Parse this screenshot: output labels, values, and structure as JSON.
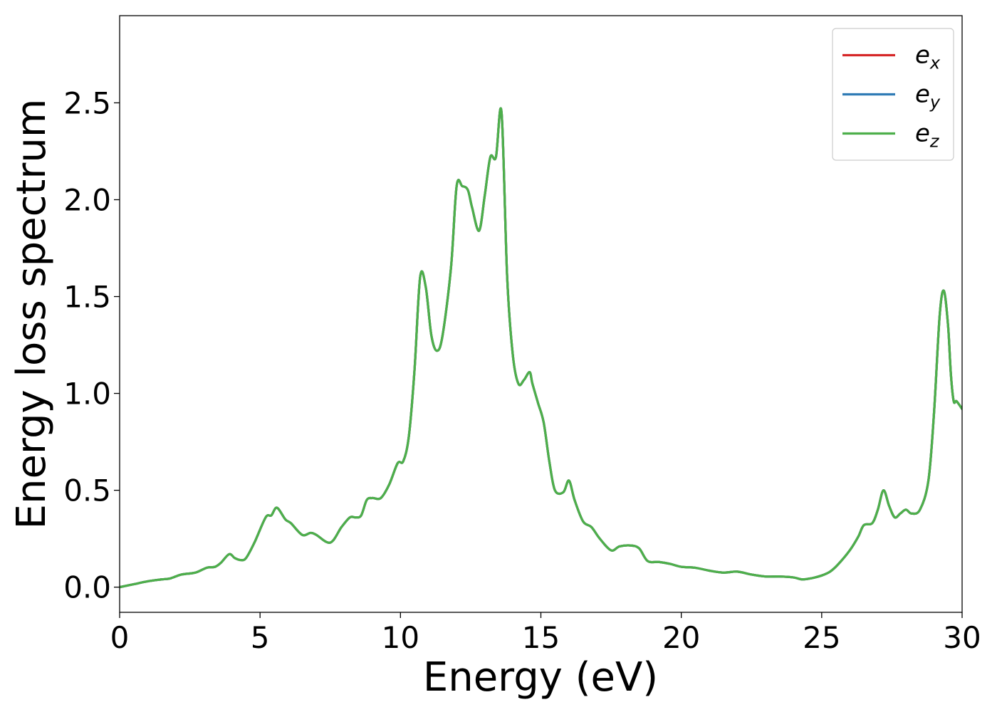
{
  "chart_data": {
    "type": "line",
    "title": "",
    "xlabel": "Energy (eV)",
    "ylabel": "Energy loss spectrum",
    "xlim": [
      0,
      30
    ],
    "ylim": [
      -0.13,
      2.95
    ],
    "x_ticks": [
      "0",
      "5",
      "10",
      "15",
      "20",
      "25",
      "30"
    ],
    "y_ticks": [
      "0.0",
      "0.5",
      "1.0",
      "1.5",
      "2.0",
      "2.5"
    ],
    "grid": false,
    "legend": {
      "position": "top-right",
      "entries": [
        {
          "base": "e",
          "sub": "x",
          "color": "#d62728"
        },
        {
          "base": "e",
          "sub": "y",
          "color": "#2f7bb5"
        },
        {
          "base": "e",
          "sub": "z",
          "color": "#4daf4a"
        }
      ]
    },
    "x": [
      0,
      0.5,
      1.0,
      1.5,
      1.8,
      2.2,
      2.7,
      3.1,
      3.4,
      3.6,
      3.9,
      4.1,
      4.3,
      4.5,
      4.8,
      5.2,
      5.4,
      5.6,
      5.9,
      6.1,
      6.5,
      6.8,
      7.0,
      7.5,
      7.9,
      8.2,
      8.4,
      8.6,
      8.8,
      9.0,
      9.3,
      9.6,
      9.9,
      10.1,
      10.3,
      10.5,
      10.7,
      10.9,
      11.1,
      11.3,
      11.5,
      11.8,
      12.0,
      12.2,
      12.4,
      12.55,
      12.8,
      13.0,
      13.2,
      13.4,
      13.6,
      13.8,
      14.0,
      14.2,
      14.4,
      14.6,
      14.7,
      14.9,
      15.1,
      15.3,
      15.5,
      15.8,
      16.0,
      16.2,
      16.5,
      16.8,
      17.1,
      17.5,
      17.8,
      18.2,
      18.5,
      18.8,
      19.2,
      19.6,
      20.0,
      20.5,
      21.0,
      21.5,
      22.0,
      22.5,
      23.0,
      23.5,
      24.0,
      24.3,
      24.6,
      25.0,
      25.3,
      25.6,
      26.0,
      26.3,
      26.5,
      26.8,
      27.0,
      27.2,
      27.4,
      27.6,
      27.8,
      28.0,
      28.2,
      28.5,
      28.8,
      29.0,
      29.2,
      29.35,
      29.5,
      29.6,
      29.7,
      29.8,
      30.0
    ],
    "series": [
      {
        "name": "e_x",
        "color": "#d62728",
        "values": [
          0.0,
          0.015,
          0.03,
          0.04,
          0.045,
          0.065,
          0.075,
          0.1,
          0.105,
          0.125,
          0.17,
          0.15,
          0.14,
          0.15,
          0.23,
          0.36,
          0.37,
          0.41,
          0.35,
          0.33,
          0.27,
          0.28,
          0.27,
          0.23,
          0.31,
          0.36,
          0.36,
          0.37,
          0.45,
          0.46,
          0.46,
          0.53,
          0.64,
          0.65,
          0.78,
          1.12,
          1.6,
          1.55,
          1.3,
          1.22,
          1.3,
          1.65,
          2.07,
          2.07,
          2.05,
          1.96,
          1.84,
          2.02,
          2.22,
          2.22,
          2.45,
          1.6,
          1.2,
          1.05,
          1.07,
          1.11,
          1.05,
          0.95,
          0.85,
          0.65,
          0.5,
          0.49,
          0.55,
          0.45,
          0.34,
          0.31,
          0.25,
          0.19,
          0.21,
          0.215,
          0.2,
          0.135,
          0.13,
          0.12,
          0.105,
          0.1,
          0.085,
          0.075,
          0.08,
          0.065,
          0.055,
          0.055,
          0.05,
          0.04,
          0.045,
          0.06,
          0.08,
          0.12,
          0.19,
          0.26,
          0.32,
          0.33,
          0.4,
          0.5,
          0.42,
          0.36,
          0.38,
          0.4,
          0.38,
          0.4,
          0.55,
          0.9,
          1.4,
          1.53,
          1.35,
          1.1,
          0.96,
          0.96,
          0.92
        ]
      },
      {
        "name": "e_y",
        "color": "#2f7bb5",
        "values": [
          0.0,
          0.015,
          0.03,
          0.04,
          0.045,
          0.065,
          0.075,
          0.1,
          0.105,
          0.125,
          0.17,
          0.15,
          0.14,
          0.15,
          0.23,
          0.36,
          0.37,
          0.41,
          0.35,
          0.33,
          0.27,
          0.28,
          0.27,
          0.23,
          0.31,
          0.36,
          0.36,
          0.37,
          0.45,
          0.46,
          0.46,
          0.53,
          0.64,
          0.65,
          0.78,
          1.12,
          1.6,
          1.55,
          1.3,
          1.22,
          1.3,
          1.65,
          2.07,
          2.07,
          2.05,
          1.96,
          1.84,
          2.02,
          2.22,
          2.22,
          2.45,
          1.6,
          1.2,
          1.05,
          1.07,
          1.11,
          1.05,
          0.95,
          0.85,
          0.65,
          0.5,
          0.49,
          0.55,
          0.45,
          0.34,
          0.31,
          0.25,
          0.19,
          0.21,
          0.215,
          0.2,
          0.135,
          0.13,
          0.12,
          0.105,
          0.1,
          0.085,
          0.075,
          0.08,
          0.065,
          0.055,
          0.055,
          0.05,
          0.04,
          0.045,
          0.06,
          0.08,
          0.12,
          0.19,
          0.26,
          0.32,
          0.33,
          0.4,
          0.5,
          0.42,
          0.36,
          0.38,
          0.4,
          0.38,
          0.4,
          0.55,
          0.9,
          1.4,
          1.53,
          1.35,
          1.1,
          0.96,
          0.96,
          0.92
        ]
      },
      {
        "name": "e_z",
        "color": "#4daf4a",
        "values": [
          0.0,
          0.015,
          0.03,
          0.04,
          0.045,
          0.065,
          0.075,
          0.1,
          0.105,
          0.125,
          0.17,
          0.15,
          0.14,
          0.15,
          0.23,
          0.36,
          0.37,
          0.41,
          0.35,
          0.33,
          0.27,
          0.28,
          0.27,
          0.23,
          0.31,
          0.36,
          0.36,
          0.37,
          0.45,
          0.46,
          0.46,
          0.53,
          0.64,
          0.65,
          0.78,
          1.12,
          1.6,
          1.55,
          1.3,
          1.22,
          1.3,
          1.65,
          2.07,
          2.07,
          2.05,
          1.96,
          1.84,
          2.02,
          2.22,
          2.22,
          2.45,
          1.6,
          1.2,
          1.05,
          1.07,
          1.11,
          1.05,
          0.95,
          0.85,
          0.65,
          0.5,
          0.49,
          0.55,
          0.45,
          0.34,
          0.31,
          0.25,
          0.19,
          0.21,
          0.215,
          0.2,
          0.135,
          0.13,
          0.12,
          0.105,
          0.1,
          0.085,
          0.075,
          0.08,
          0.065,
          0.055,
          0.055,
          0.05,
          0.04,
          0.045,
          0.06,
          0.08,
          0.12,
          0.19,
          0.26,
          0.32,
          0.33,
          0.4,
          0.5,
          0.42,
          0.36,
          0.38,
          0.4,
          0.38,
          0.4,
          0.55,
          0.9,
          1.4,
          1.53,
          1.35,
          1.1,
          0.96,
          0.96,
          0.92
        ]
      }
    ]
  }
}
